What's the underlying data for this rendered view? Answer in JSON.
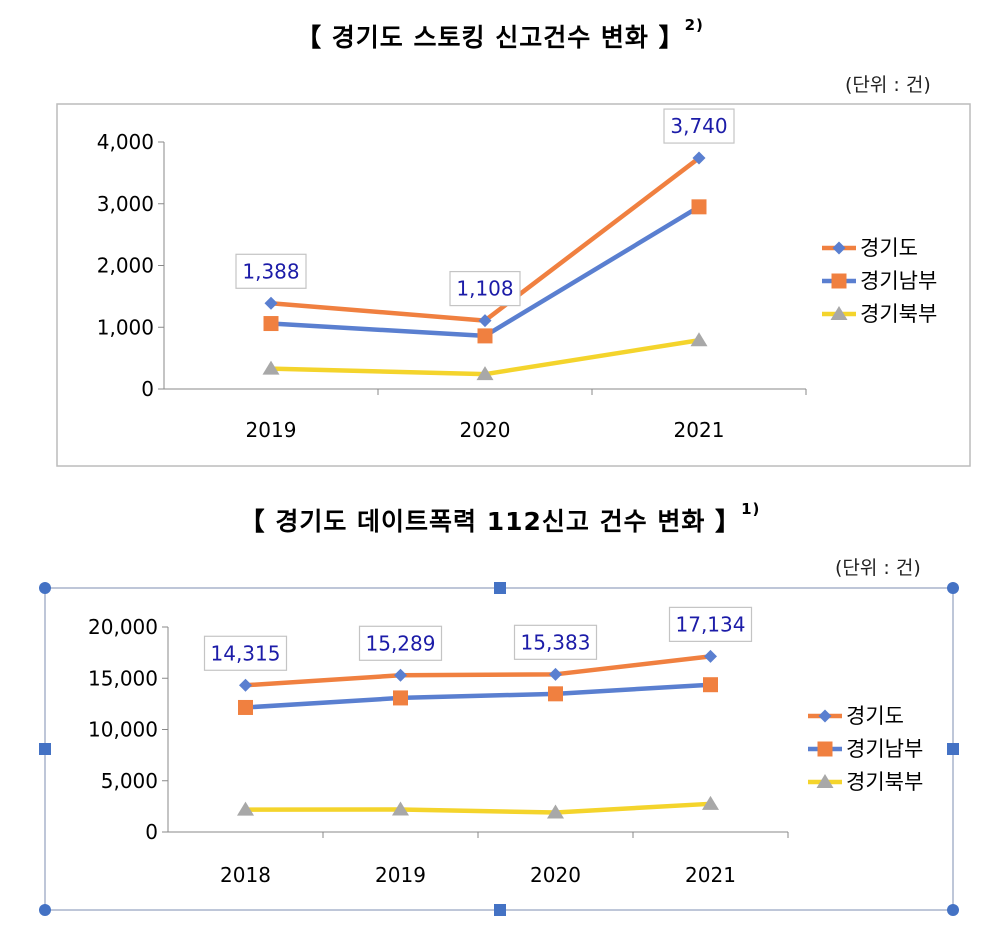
{
  "charts": [
    {
      "title": "【 경기도 스토킹 신고건수 변화 】",
      "footnote": "2)",
      "unit": "(단위 : 건)"
    },
    {
      "title": "【 경기도 데이트폭력 112신고 건수 변화 】",
      "footnote": "1)",
      "unit": "(단위 : 건)"
    }
  ],
  "colors": {
    "gyeonggi": "#f08040",
    "south": "#5a7fd0",
    "north": "#f0d020",
    "label_text": "#1c1ca8",
    "axis": "#888888",
    "handle": "#4472c4"
  },
  "chart_data": [
    {
      "type": "line",
      "categories": [
        "2019",
        "2020",
        "2021"
      ],
      "series": [
        {
          "name": "경기도",
          "values": [
            1388,
            1108,
            3740
          ],
          "marker": "diamond",
          "labels": [
            "1,388",
            "1,108",
            "3,740"
          ]
        },
        {
          "name": "경기남부",
          "values": [
            1060,
            860,
            2950
          ],
          "marker": "square"
        },
        {
          "name": "경기북부",
          "values": [
            330,
            240,
            790
          ],
          "marker": "triangle"
        }
      ],
      "yticks": [
        "0",
        "1,000",
        "2,000",
        "3,000",
        "4,000"
      ],
      "ylim": [
        0,
        4000
      ],
      "legend": "right"
    },
    {
      "type": "line",
      "categories": [
        "2018",
        "2019",
        "2020",
        "2021"
      ],
      "series": [
        {
          "name": "경기도",
          "values": [
            14315,
            15289,
            15383,
            17134
          ],
          "marker": "diamond",
          "labels": [
            "14,315",
            "15,289",
            "15,383",
            "17,134"
          ]
        },
        {
          "name": "경기남부",
          "values": [
            12150,
            13080,
            13480,
            14370
          ],
          "marker": "square"
        },
        {
          "name": "경기북부",
          "values": [
            2180,
            2200,
            1900,
            2750
          ],
          "marker": "triangle"
        }
      ],
      "yticks": [
        "0",
        "5,000",
        "10,000",
        "15,000",
        "20,000"
      ],
      "ylim": [
        0,
        20000
      ],
      "legend": "right"
    }
  ]
}
